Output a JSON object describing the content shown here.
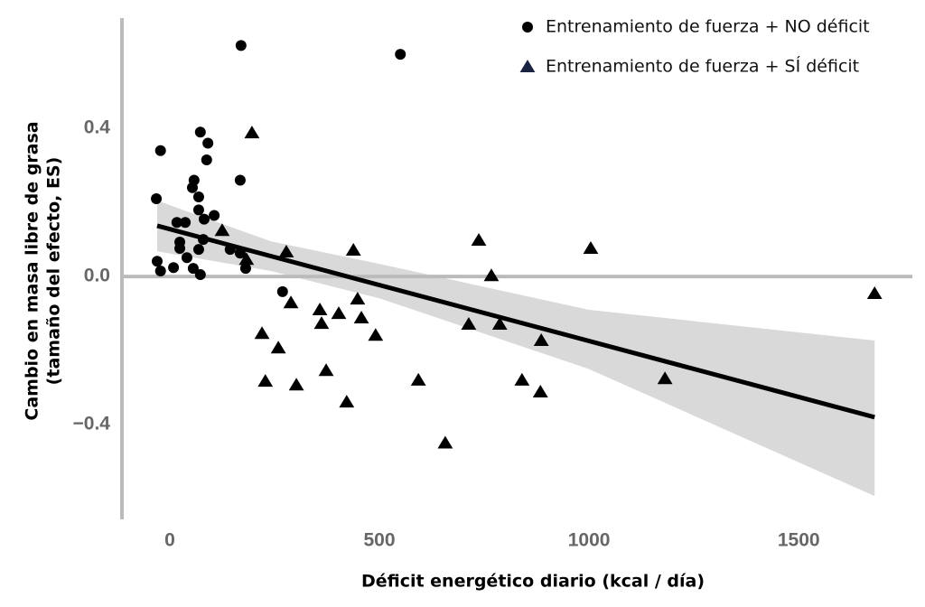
{
  "chart_data": {
    "type": "scatter",
    "x_label": "Déficit energético diario (kcal / día)",
    "y_label": [
      "Cambio en masa libre de grasa",
      "(tamaño del efecto, ES)"
    ],
    "xlim": [
      -114,
      1771
    ],
    "ylim": [
      -0.656,
      0.698
    ],
    "xticks": [
      0,
      500,
      1000,
      1500
    ],
    "yticks": [
      0.4,
      {
        "value": 0,
        "label": "0.0"
      },
      {
        "value": -0.4,
        "label": "−0.4"
      }
    ],
    "reference_line_y": 0,
    "legend": "top-right",
    "series": [
      {
        "name": "Entrenamiento de fuerza + NO déficit",
        "marker": "circle",
        "color": "#000000",
        "x": [
          170,
          550,
          -22,
          73,
          88,
          91,
          168,
          -32,
          58,
          54,
          69,
          69,
          106,
          82,
          17,
          37,
          24,
          24,
          80,
          69,
          144,
          168,
          41,
          -30,
          9,
          -22,
          56,
          73,
          181,
          269
        ],
        "values": [
          0.624,
          0.6,
          0.34,
          0.39,
          0.315,
          0.36,
          0.26,
          0.21,
          0.26,
          0.24,
          0.215,
          0.18,
          0.165,
          0.155,
          0.146,
          0.146,
          0.093,
          0.076,
          0.1,
          0.073,
          0.073,
          0.063,
          0.051,
          0.041,
          0.024,
          0.015,
          0.022,
          0.005,
          0.022,
          -0.041
        ]
      },
      {
        "name": "Entrenamiento de fuerza + SÍ déficit",
        "marker": "triangle",
        "color": "#000000",
        "legend_color": "#1a2340",
        "x": [
          196,
          125,
          278,
          183,
          438,
          737,
          767,
          1004,
          1681,
          448,
          289,
          358,
          403,
          457,
          362,
          713,
          787,
          220,
          491,
          886,
          259,
          373,
          228,
          302,
          593,
          840,
          1181,
          884,
          422,
          657
        ],
        "values": [
          0.388,
          0.124,
          0.066,
          0.046,
          0.071,
          0.098,
          0.002,
          0.076,
          -0.046,
          -0.061,
          -0.071,
          -0.09,
          -0.1,
          -0.112,
          -0.127,
          -0.129,
          -0.129,
          -0.154,
          -0.159,
          -0.173,
          -0.193,
          -0.254,
          -0.283,
          -0.293,
          -0.28,
          -0.28,
          -0.276,
          -0.312,
          -0.339,
          -0.45
        ]
      }
    ],
    "fit": {
      "x": [
        -30,
        1681
      ],
      "values": [
        0.137,
        -0.38
      ],
      "color": "#000000"
    },
    "band": {
      "x": [
        -30,
        241,
        500,
        1000,
        1681
      ],
      "upper": [
        0.205,
        0.095,
        0.034,
        -0.09,
        -0.173
      ],
      "lower": [
        0.068,
        0.015,
        -0.059,
        -0.25,
        -0.593
      ],
      "color": "#d9d9d9"
    }
  }
}
